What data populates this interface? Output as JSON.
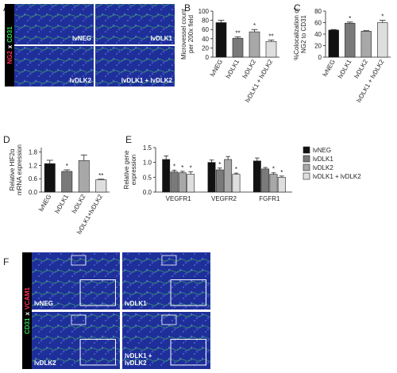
{
  "panel_letters": [
    "A",
    "B",
    "C",
    "D",
    "E",
    "F"
  ],
  "images": {
    "A": {
      "stain": [
        "NG2",
        "x",
        "CD31"
      ],
      "labels": [
        [
          "lvNEG"
        ],
        [
          "lvDLK1"
        ],
        [
          "lvDLK2"
        ],
        [
          "lvDLK1 + lvDLK2"
        ]
      ]
    },
    "F": {
      "stain": [
        "CD31",
        "x",
        "VCAM1"
      ],
      "labels": [
        [
          "lvNEG"
        ],
        [
          "lvDLK1"
        ],
        [
          "lvDLK2"
        ],
        [
          "lvDLK1 +",
          "lvDLK2"
        ]
      ]
    }
  },
  "chart_data": [
    {
      "type": "bar",
      "ylabel": [
        "Microvessel count",
        "per 200x field"
      ],
      "categories": [
        "lvNEG",
        "lvDLK1",
        "lvDLK2",
        "lvDLK1 + lvDLK2"
      ],
      "values": [
        75,
        41,
        55,
        34
      ],
      "errors": [
        5,
        3,
        5,
        3
      ],
      "significance": [
        null,
        "**",
        "*",
        "**"
      ],
      "colors": [
        "#111111",
        "#7a7a7a",
        "#a8a8a8",
        "#dedede"
      ],
      "ylim": [
        0,
        100
      ],
      "yticks": [
        0,
        20,
        40,
        60,
        80,
        100
      ]
    },
    {
      "type": "bar",
      "ylabel": [
        "%Colocalization of",
        "NG2 to CD31"
      ],
      "categories": [
        "lvNEG",
        "lvDLK1",
        "lvDLK2",
        "lvDLK1 + lvDLK2"
      ],
      "values": [
        47,
        59,
        45,
        60
      ],
      "errors": [
        1,
        2,
        1,
        4
      ],
      "significance": [
        null,
        "*",
        null,
        "*"
      ],
      "colors": [
        "#111111",
        "#7a7a7a",
        "#a8a8a8",
        "#dedede"
      ],
      "ylim": [
        0,
        80
      ],
      "yticks": [
        0,
        20,
        40,
        60,
        80
      ]
    },
    {
      "type": "bar",
      "ylabel": [
        "Relative HIF2α",
        "mRNA expression"
      ],
      "categories": [
        "lvNEG",
        "lvDLK1",
        "lvDLK2",
        "lvDLK1+lvDLK2"
      ],
      "values": [
        1.28,
        0.93,
        1.42,
        0.55
      ],
      "errors": [
        0.15,
        0.07,
        0.25,
        0.03
      ],
      "significance": [
        null,
        "*",
        null,
        "**"
      ],
      "colors": [
        "#111111",
        "#7a7a7a",
        "#a8a8a8",
        "#dedede"
      ],
      "ylim": [
        0,
        2.0
      ],
      "yticks": [
        {
          "value": 0,
          "label": "0.0"
        },
        0.6,
        1.2,
        1.8
      ]
    },
    {
      "type": "grouped_bar",
      "ylabel": [
        "Relative gene",
        "expression"
      ],
      "categories": [
        "VEGFR1",
        "VEGFR2",
        "FGFR1"
      ],
      "series": [
        {
          "name": "lvNEG",
          "color": "#111111",
          "values": [
            1.1,
            1.0,
            1.05
          ],
          "errors": [
            0.12,
            0.08,
            0.1
          ],
          "significance": [
            null,
            null,
            null
          ]
        },
        {
          "name": "lvDLK1",
          "color": "#7a7a7a",
          "values": [
            0.68,
            0.75,
            0.78
          ],
          "errors": [
            0.06,
            0.06,
            0.05
          ],
          "significance": [
            "*",
            "*",
            null
          ]
        },
        {
          "name": "lvDLK2",
          "color": "#a8a8a8",
          "values": [
            0.65,
            1.1,
            0.6
          ],
          "errors": [
            0.05,
            0.1,
            0.05
          ],
          "significance": [
            "*",
            null,
            "*"
          ]
        },
        {
          "name": "lvDLK1 + lvDLK2",
          "color": "#dedede",
          "values": [
            0.6,
            0.6,
            0.5
          ],
          "errors": [
            0.08,
            0.04,
            0.04
          ],
          "significance": [
            "*",
            "*",
            "*"
          ]
        }
      ],
      "ylim": [
        0,
        1.5
      ],
      "yticks": [
        {
          "value": 0,
          "label": "0.0"
        },
        0.5,
        {
          "value": 1,
          "label": "1.0"
        },
        1.5
      ]
    }
  ]
}
